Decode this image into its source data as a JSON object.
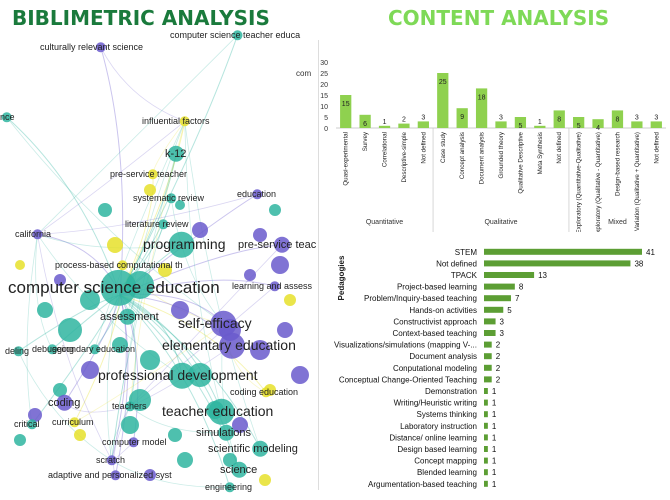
{
  "headings": {
    "left": "BIBLIMETRIC ANALYSIS",
    "right": "CONTENT ANALYSIS"
  },
  "colors": {
    "left_heading": "#1a7a3c",
    "right_heading": "#7ed957",
    "bar": "#8fd14f",
    "bar_dark": "#5c9e34"
  },
  "network": {
    "keywords": [
      {
        "label": "culturally relevant science",
        "cluster": "purple",
        "size": 1
      },
      {
        "label": "computer science teacher educa",
        "cluster": "teal",
        "size": 1
      },
      {
        "label": "nce",
        "cluster": "teal",
        "size": 1
      },
      {
        "label": "influential factors",
        "cluster": "yellow",
        "size": 1
      },
      {
        "label": "k-12",
        "cluster": "teal",
        "size": 2
      },
      {
        "label": "pre-service teacher",
        "cluster": "yellow",
        "size": 1
      },
      {
        "label": "education",
        "cluster": "purple",
        "size": 1
      },
      {
        "label": "systematic review",
        "cluster": "teal",
        "size": 1
      },
      {
        "label": "pre-service teac",
        "cluster": "purple",
        "size": 2
      },
      {
        "label": "literature review",
        "cluster": "teal",
        "size": 1
      },
      {
        "label": "california",
        "cluster": "purple",
        "size": 1
      },
      {
        "label": "programming",
        "cluster": "teal",
        "size": 3
      },
      {
        "label": "process-based computational th",
        "cluster": "yellow",
        "size": 1
      },
      {
        "label": "learning and assess",
        "cluster": "purple",
        "size": 1
      },
      {
        "label": "computer science education",
        "cluster": "teal",
        "size": 4
      },
      {
        "label": "assessment",
        "cluster": "teal",
        "size": 2
      },
      {
        "label": "debugging",
        "cluster": "teal",
        "size": 1
      },
      {
        "label": "self-efficacy",
        "cluster": "purple",
        "size": 3
      },
      {
        "label": "elementary education",
        "cluster": "purple",
        "size": 3
      },
      {
        "label": "deling",
        "cluster": "teal",
        "size": 1
      },
      {
        "label": "secondary education",
        "cluster": "teal",
        "size": 1
      },
      {
        "label": "professional development",
        "cluster": "teal",
        "size": 3
      },
      {
        "label": "coding education",
        "cluster": "yellow",
        "size": 1
      },
      {
        "label": "coding",
        "cluster": "purple",
        "size": 2
      },
      {
        "label": "teachers",
        "cluster": "teal",
        "size": 1
      },
      {
        "label": "teacher education",
        "cluster": "teal",
        "size": 3
      },
      {
        "label": "critical",
        "cluster": "teal",
        "size": 1
      },
      {
        "label": "curriculum",
        "cluster": "yellow",
        "size": 1
      },
      {
        "label": "simulations",
        "cluster": "teal",
        "size": 2
      },
      {
        "label": "computer model",
        "cluster": "purple",
        "size": 1
      },
      {
        "label": "scientific modeling",
        "cluster": "teal",
        "size": 2
      },
      {
        "label": "scratch",
        "cluster": "purple",
        "size": 1
      },
      {
        "label": "science",
        "cluster": "teal",
        "size": 2
      },
      {
        "label": "adaptive and personalized syst",
        "cluster": "purple",
        "size": 1
      },
      {
        "label": "engineering",
        "cluster": "teal",
        "size": 1
      }
    ]
  },
  "chart_data": [
    {
      "type": "bar",
      "orientation": "vertical",
      "title": "",
      "title_fragment": "com",
      "ylim": [
        0,
        30
      ],
      "y_ticks": [
        0,
        5,
        10,
        15,
        20,
        25,
        30
      ],
      "categories": [
        "Quasi-experimental",
        "Survey",
        "Correlational",
        "Descriptive-simple",
        "Not defined",
        "Case study",
        "Concept analysis",
        "Document analysis",
        "Grounded theory",
        "Qualitative Descriptive",
        "Meta Synthesis",
        "Not defined",
        "Exploratory (Quantitative-Qualitative)",
        "Exploratory (Qualitative - Quantitative)",
        "Design-based research",
        "Variation (Qualitative + Quantitative)",
        "Not defined"
      ],
      "values": [
        15,
        6,
        1,
        2,
        3,
        25,
        9,
        18,
        3,
        5,
        1,
        8,
        5,
        4,
        8,
        3,
        3
      ],
      "groups": [
        {
          "name": "Quantitative",
          "count": 5
        },
        {
          "name": "Qualitative",
          "count": 7
        },
        {
          "name": "Mixed",
          "count": 5
        }
      ]
    },
    {
      "type": "bar",
      "orientation": "horizontal",
      "title": "",
      "ylabel": "Pedagogies",
      "categories": [
        "STEM",
        "Not defined",
        "TPACK",
        "Project-based learning",
        "Problem/Inquiry-based teaching",
        "Hands-on activities",
        "Constructivist approach",
        "Context-based teaching",
        "Visualizations/simulations (mapping V-...",
        "Document analysis",
        "Conputational modeling",
        "Conceptual Change-Oriented Teaching",
        "Demonstration",
        "Writing/Heuristic writing",
        "Systems thinking",
        "Laboratory instruction",
        "Distance/ online learning",
        "Design based learning",
        "Concept mapping",
        "Blended learning",
        "Argumentation-based teaching"
      ],
      "values": [
        41,
        38,
        13,
        8,
        7,
        5,
        3,
        3,
        2,
        2,
        2,
        2,
        1,
        1,
        1,
        1,
        1,
        1,
        1,
        1,
        1
      ],
      "xlim": [
        0,
        41
      ]
    }
  ]
}
